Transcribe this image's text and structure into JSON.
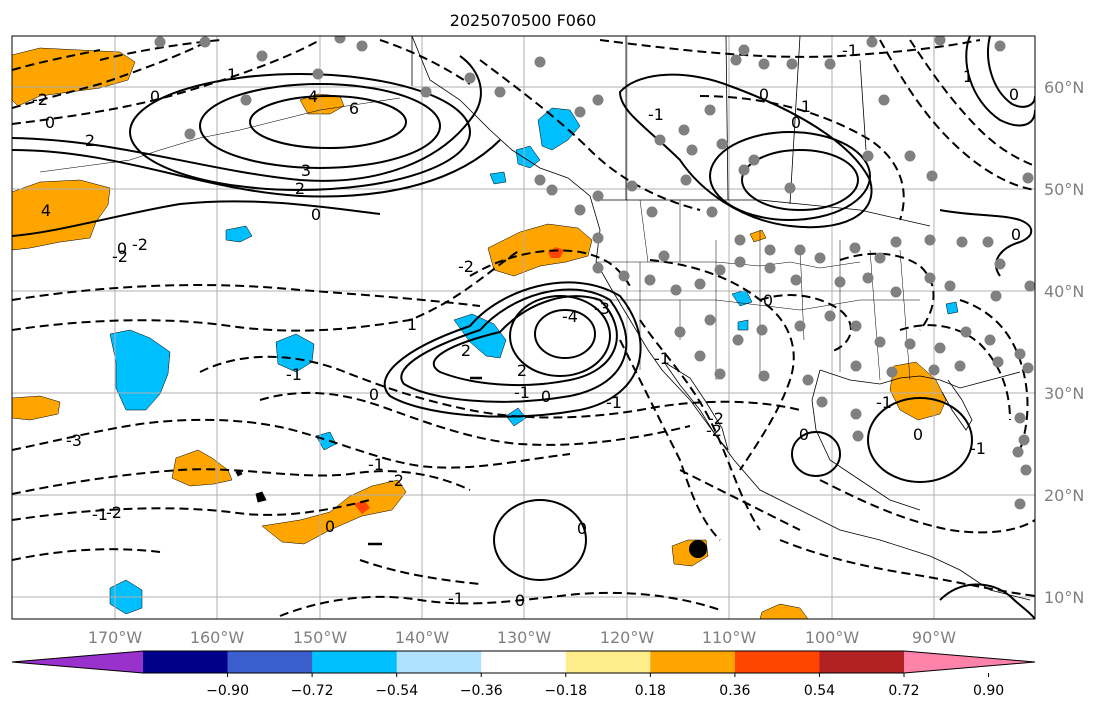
{
  "title": "2025070500 F060",
  "map": {
    "lon_labels": [
      "170°W",
      "160°W",
      "150°W",
      "140°W",
      "130°W",
      "120°W",
      "110°W",
      "100°W",
      "90°W"
    ],
    "lat_labels": [
      "60°N",
      "50°N",
      "40°N",
      "30°N",
      "20°N",
      "10°N"
    ],
    "contour_labels": [
      "-2",
      "0",
      "2",
      "1",
      "0",
      "-2",
      "6",
      "4",
      "-1",
      "1",
      "2",
      "0",
      "3",
      "2",
      "0",
      "4",
      "-2",
      "-2",
      "-1",
      "-4",
      "-3",
      "-2",
      "2",
      "-1",
      "0",
      "0",
      "-1",
      "-3",
      "0",
      "-1",
      "-2",
      "0",
      "0",
      "-1",
      "0",
      "-2",
      "-2",
      "-1",
      "0",
      "-1",
      "0",
      "-1",
      "0",
      "0",
      "1",
      "-1",
      "0",
      "0",
      "-1",
      "1"
    ],
    "station_marker_color": "#808080",
    "marker_color": "#000000"
  },
  "colorbar": {
    "colors": [
      "#9932cc",
      "#00008b",
      "#3a5fcd",
      "#00bfff",
      "#b0e2ff",
      "#ffffff",
      "#ffec8b",
      "#ffa500",
      "#ff4500",
      "#b22222",
      "#ff82ab"
    ],
    "tick_labels": [
      "−0.90",
      "−0.72",
      "−0.54",
      "−0.36",
      "−0.18",
      "0.18",
      "0.36",
      "0.54",
      "0.72",
      "0.90"
    ]
  },
  "colors": {
    "positive_fill": "#ffa500",
    "strong_positive_fill": "#ff4500",
    "negative_fill": "#00bfff",
    "grid": "#b0b0b0",
    "axis_label": "#808080"
  }
}
